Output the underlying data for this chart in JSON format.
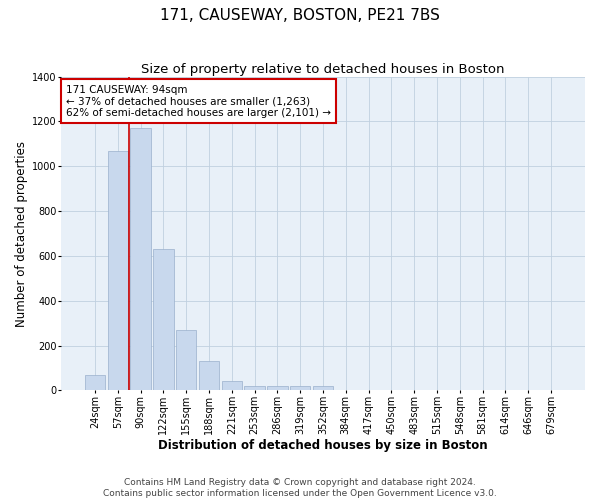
{
  "title": "171, CAUSEWAY, BOSTON, PE21 7BS",
  "subtitle": "Size of property relative to detached houses in Boston",
  "xlabel": "Distribution of detached houses by size in Boston",
  "ylabel": "Number of detached properties",
  "footer": "Contains HM Land Registry data © Crown copyright and database right 2024.\nContains public sector information licensed under the Open Government Licence v3.0.",
  "categories": [
    "24sqm",
    "57sqm",
    "90sqm",
    "122sqm",
    "155sqm",
    "188sqm",
    "221sqm",
    "253sqm",
    "286sqm",
    "319sqm",
    "352sqm",
    "384sqm",
    "417sqm",
    "450sqm",
    "483sqm",
    "515sqm",
    "548sqm",
    "581sqm",
    "614sqm",
    "646sqm",
    "679sqm"
  ],
  "values": [
    70,
    1070,
    1170,
    630,
    270,
    130,
    40,
    20,
    20,
    20,
    20,
    0,
    0,
    0,
    0,
    0,
    0,
    0,
    0,
    0,
    0
  ],
  "bar_color": "#c8d8ed",
  "bar_edge_color": "#9ab0cc",
  "red_line_x": 1.5,
  "red_line_label": "171 CAUSEWAY: 94sqm",
  "annotation_line1": "← 37% of detached houses are smaller (1,263)",
  "annotation_line2": "62% of semi-detached houses are larger (2,101) →",
  "annotation_box_color": "#ffffff",
  "annotation_box_edge_color": "#cc0000",
  "ylim": [
    0,
    1400
  ],
  "yticks": [
    0,
    200,
    400,
    600,
    800,
    1000,
    1200,
    1400
  ],
  "background_color": "#ffffff",
  "plot_bg_color": "#e8f0f8",
  "grid_color": "#c0d0e0",
  "title_fontsize": 11,
  "subtitle_fontsize": 9.5,
  "axis_label_fontsize": 8.5,
  "tick_fontsize": 7,
  "footer_fontsize": 6.5,
  "annotation_fontsize": 7.5
}
